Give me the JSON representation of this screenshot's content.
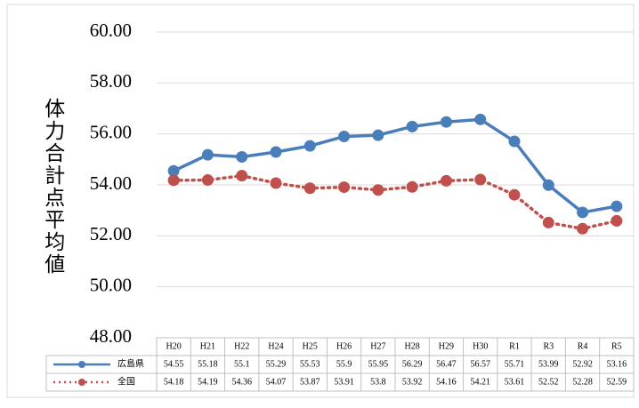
{
  "chart_data": {
    "type": "line",
    "y_label": "体力合計点平均値",
    "categories": [
      "H20",
      "H21",
      "H22",
      "H24",
      "H25",
      "H26",
      "H27",
      "H28",
      "H29",
      "H30",
      "R1",
      "R3",
      "R4",
      "R5"
    ],
    "series": [
      {
        "name": "広島県",
        "color": "#4a7ebb",
        "line_style": "solid",
        "values": [
          54.55,
          55.18,
          55.1,
          55.29,
          55.53,
          55.9,
          55.95,
          56.29,
          56.47,
          56.57,
          55.71,
          53.99,
          52.92,
          53.16
        ]
      },
      {
        "name": "全国",
        "color": "#c0504d",
        "line_style": "dotted",
        "values": [
          54.18,
          54.19,
          54.36,
          54.07,
          53.87,
          53.91,
          53.8,
          53.92,
          54.16,
          54.21,
          53.61,
          52.52,
          52.28,
          52.59
        ]
      }
    ],
    "ylim": [
      48,
      60
    ],
    "yticks": [
      {
        "value": 48,
        "label": "48.00"
      },
      {
        "value": 50,
        "label": "50.00"
      },
      {
        "value": 52,
        "label": "52.00"
      },
      {
        "value": 54,
        "label": "54.00"
      },
      {
        "value": 56,
        "label": "56.00"
      },
      {
        "value": 58,
        "label": "58.00"
      },
      {
        "value": 60,
        "label": "60.00"
      }
    ],
    "grid": true,
    "data_table": true
  }
}
